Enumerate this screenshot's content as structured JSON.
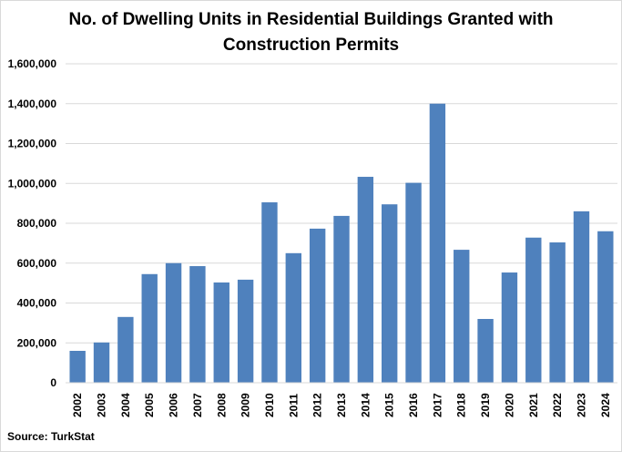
{
  "chart_data": {
    "type": "bar",
    "title_lines": [
      "No. of Dwelling Units in Residential Buildings Granted with",
      "Construction Permits"
    ],
    "categories": [
      "2002",
      "2003",
      "2004",
      "2005",
      "2006",
      "2007",
      "2008",
      "2009",
      "2010",
      "2011",
      "2012",
      "2013",
      "2014",
      "2015",
      "2016",
      "2017",
      "2018",
      "2019",
      "2020",
      "2021",
      "2022",
      "2023",
      "2024"
    ],
    "values": [
      160000,
      202000,
      330000,
      545000,
      600000,
      585000,
      503000,
      517000,
      905000,
      650000,
      773000,
      837000,
      1033000,
      895000,
      1003000,
      1400000,
      667000,
      320000,
      553000,
      728000,
      704000,
      860000,
      760000
    ],
    "ylim": [
      0,
      1600000
    ],
    "yticks": [
      0,
      200000,
      400000,
      600000,
      800000,
      1000000,
      1200000,
      1400000,
      1600000
    ],
    "ytick_labels": [
      "0",
      "200,000",
      "400,000",
      "600,000",
      "800,000",
      "1,000,000",
      "1,200,000",
      "1,400,000",
      "1,600,000"
    ],
    "bar_color": "#4f81bd",
    "grid_color": "#d9d9d9",
    "grid": true,
    "legend": "none",
    "xlabel": "",
    "ylabel": ""
  },
  "source_text": "Source: TurkStat"
}
